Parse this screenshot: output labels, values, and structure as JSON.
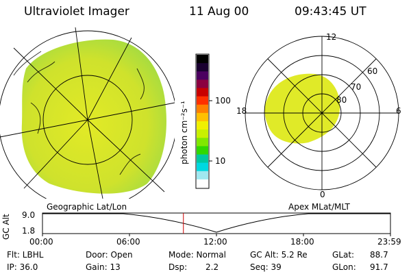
{
  "header": {
    "instrument": "Ultraviolet Imager",
    "date": "11 Aug 00",
    "time": "09:43:45 UT"
  },
  "colorbar": {
    "unit_label": "photon cm⁻²s⁻¹",
    "ticks": [
      "100",
      "10"
    ],
    "colors": [
      "#000000",
      "#1a0030",
      "#4b0060",
      "#8b0040",
      "#c80000",
      "#ff3000",
      "#ff8000",
      "#ffc000",
      "#f0f000",
      "#c8f000",
      "#80e800",
      "#30d800",
      "#00c8a0",
      "#00d8e0",
      "#a0e8f0",
      "#ffffff"
    ]
  },
  "geo_panel": {
    "label": "Geographic Lat/Lon",
    "fill_color": "#d4e62a"
  },
  "apex_panel": {
    "label": "Apex MLat/MLT",
    "mlt_labels": {
      "top": "12",
      "bottom": "0",
      "left": "18",
      "right": "6"
    },
    "lat_labels": [
      "60",
      "70",
      "80"
    ],
    "fill_color": "#e0ea28"
  },
  "timeline": {
    "ylabel": "GC Alt",
    "ymax_label": "9.0",
    "ymin_label": "1.8",
    "ticks": [
      "00:00",
      "06:00",
      "12:00",
      "18:00",
      "23:59"
    ],
    "current_time_fraction": 0.405
  },
  "info": {
    "filter_label": "Flt: LBHL",
    "ip_label": "IP: 36.0",
    "door_label": "Door: Open",
    "gain_label": "Gain: 13",
    "mode_label": "Mode: Normal",
    "dsp_label": "Dsp:",
    "dsp_value": "2.2",
    "gcalt_label": "GC Alt: 5.2 Re",
    "seq_label": "Seq: 39",
    "glat_label": "GLat:",
    "glat_value": "88.7",
    "glon_label": "GLon:",
    "glon_value": "91.7"
  }
}
